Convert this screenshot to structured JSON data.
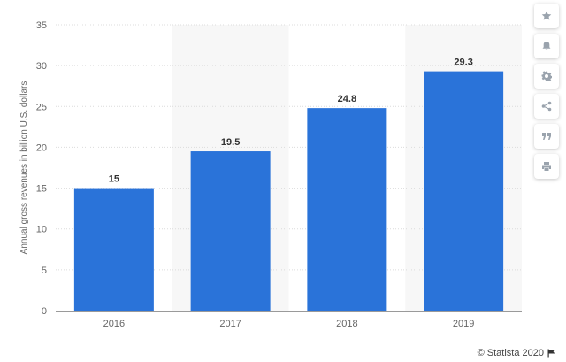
{
  "chart_data": {
    "type": "bar",
    "categories": [
      "2016",
      "2017",
      "2018",
      "2019"
    ],
    "values": [
      15,
      19.5,
      24.8,
      29.3
    ],
    "value_labels": [
      "15",
      "19.5",
      "24.8",
      "29.3"
    ],
    "title": "",
    "xlabel": "",
    "ylabel": "Annual gross revenues in billion U.S. dollars",
    "ylim": [
      0,
      35
    ],
    "yticks": [
      "0",
      "5",
      "10",
      "15",
      "20",
      "25",
      "30",
      "35"
    ],
    "grid": true,
    "alternate_column_shading": true,
    "bar_color": "#2a73d9"
  },
  "toolbar": {
    "icons": [
      "star-icon",
      "bell-icon",
      "gear-icon",
      "share-icon",
      "quote-icon",
      "print-icon"
    ]
  },
  "credit": {
    "text": "© Statista 2020",
    "icon": "flag-icon"
  }
}
